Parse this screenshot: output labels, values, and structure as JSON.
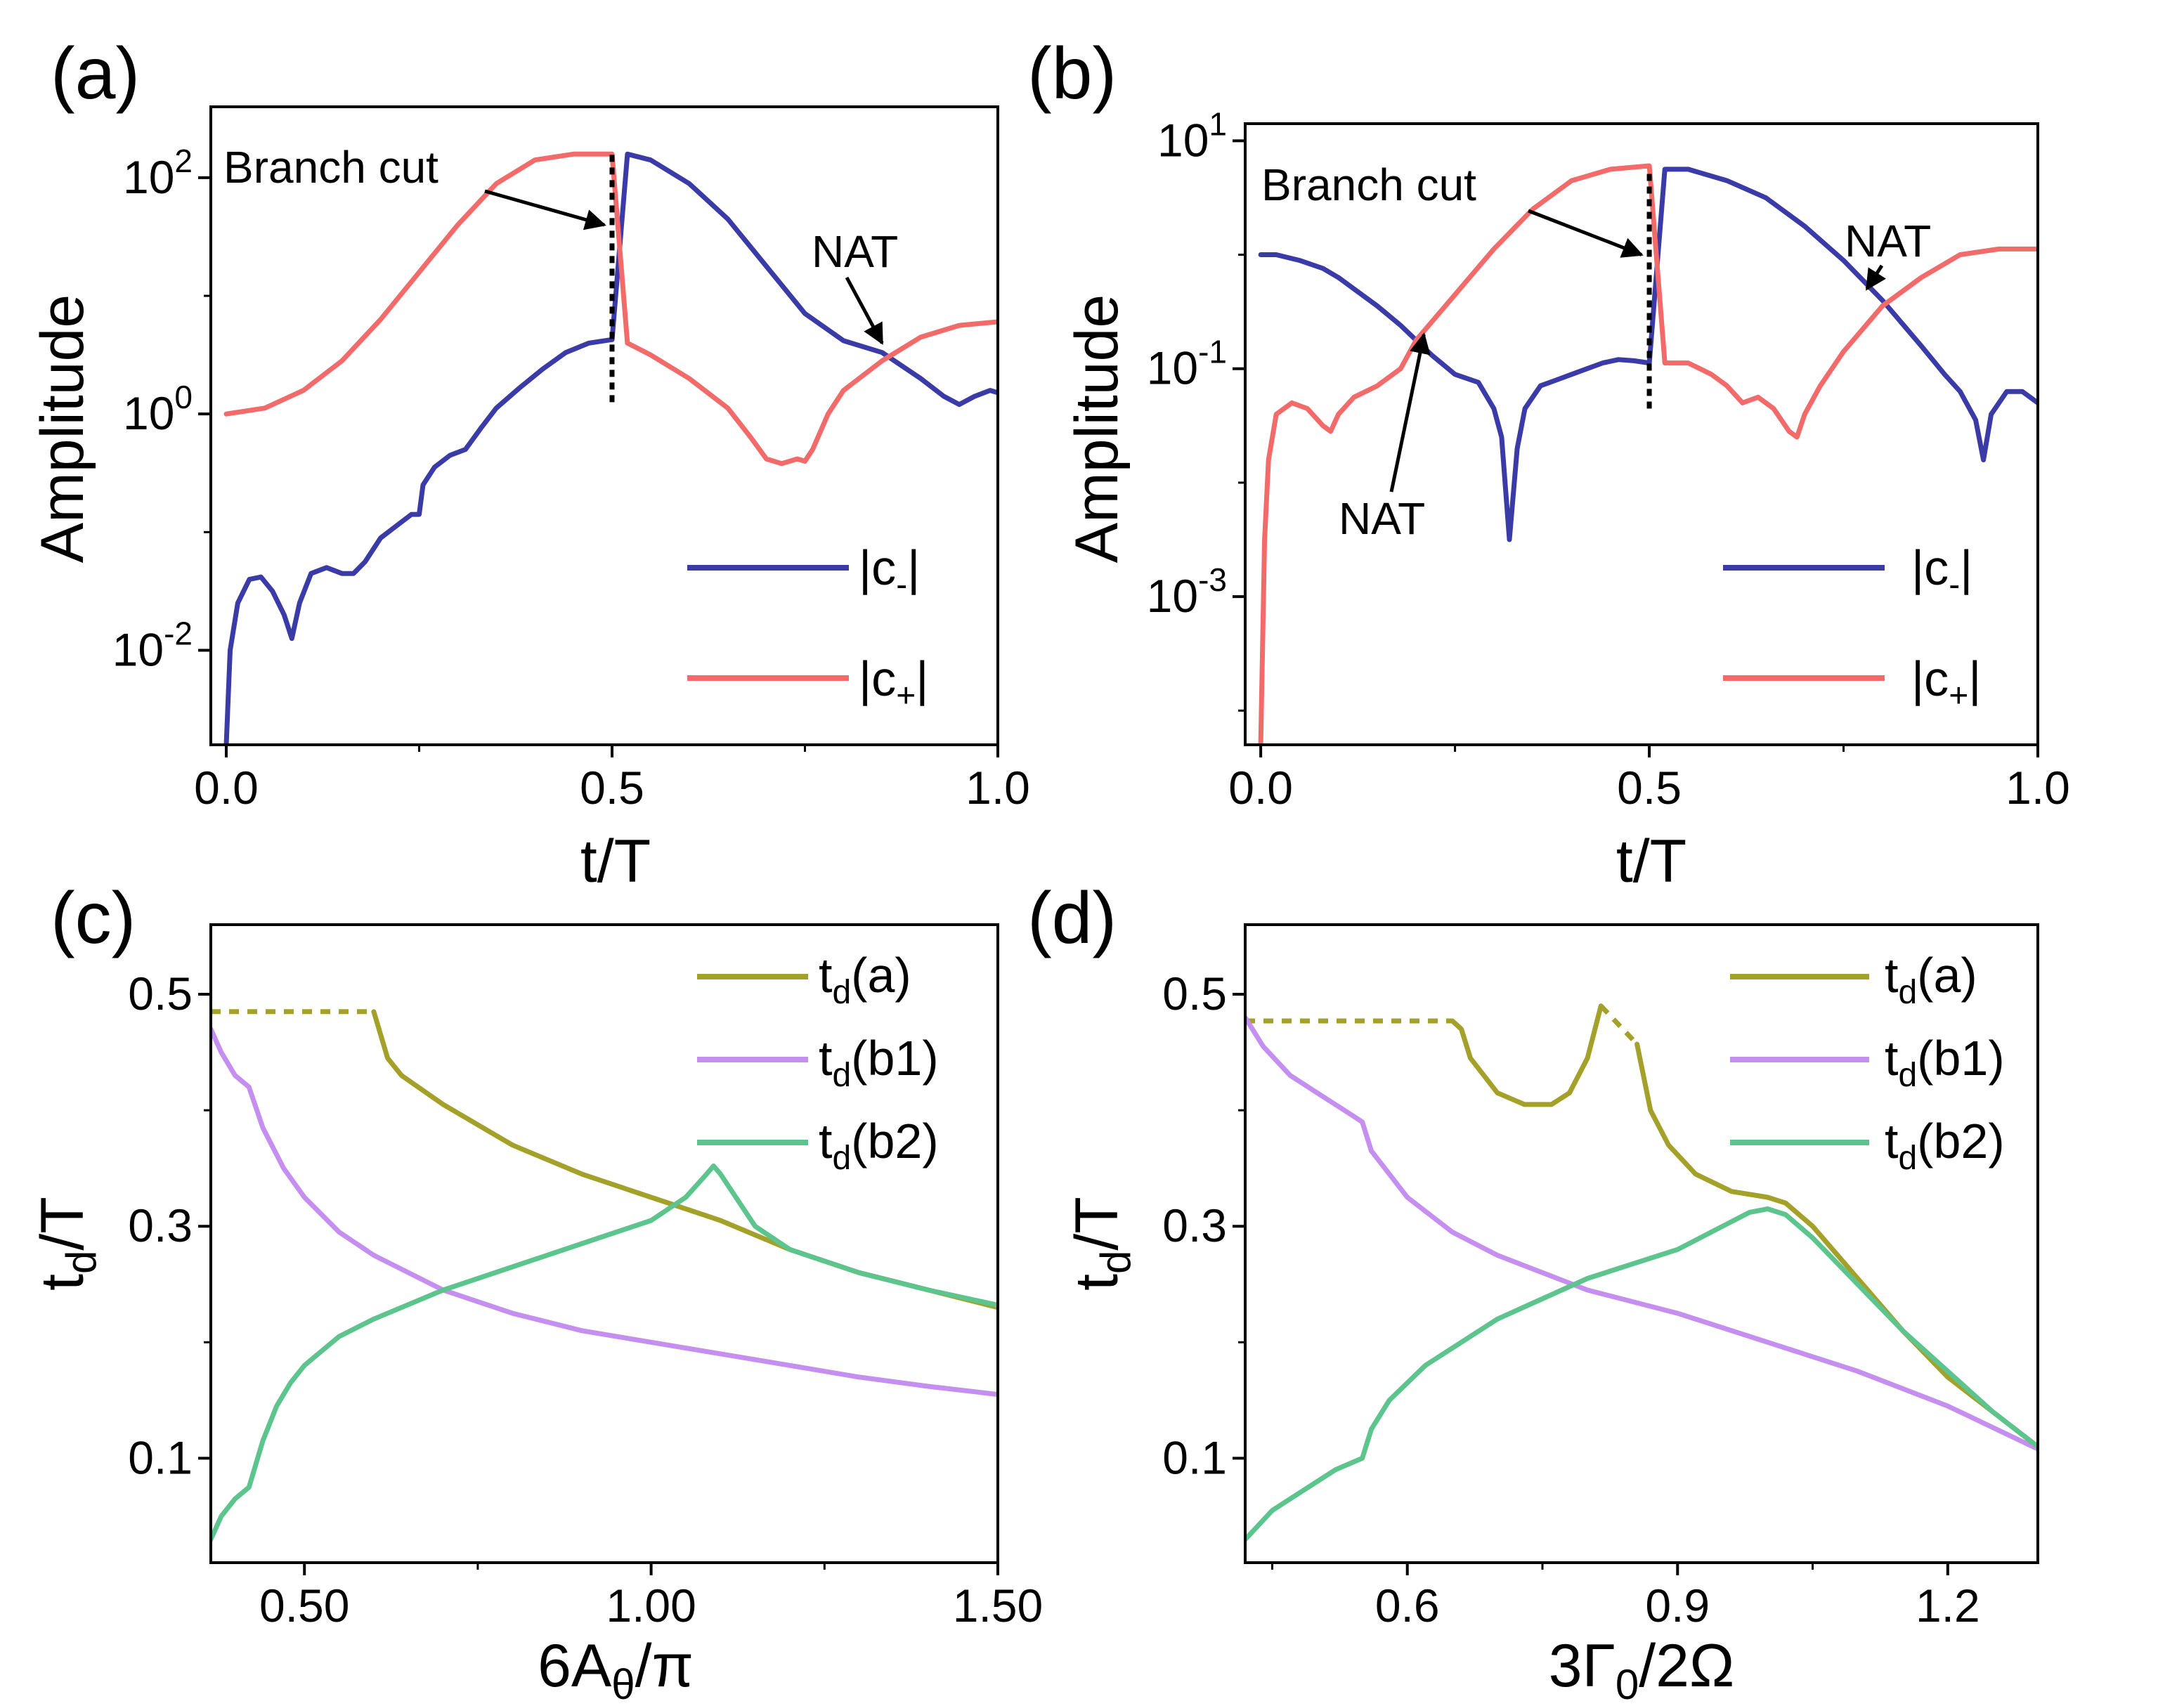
{
  "colors": {
    "c_minus": "#3b3ba8",
    "c_plus": "#f26b6b",
    "td_a": "#a3a12a",
    "td_b1": "#c58ff0",
    "td_b2": "#5cc48c",
    "axis": "#000000"
  },
  "chart_data": [
    {
      "id": "a",
      "panel_label": "(a)",
      "type": "line",
      "yscale": "log",
      "xlabel": "t/T",
      "ylabel": "Amplitude",
      "xlim": [
        -0.02,
        1.0
      ],
      "ylim_log10": [
        -2.8,
        2.6
      ],
      "xticks": [
        {
          "v": 0.0,
          "label": "0.0"
        },
        {
          "v": 0.5,
          "label": "0.5"
        },
        {
          "v": 1.0,
          "label": "1.0"
        }
      ],
      "yticks": [
        {
          "e": 2,
          "label": "2"
        },
        {
          "e": 0,
          "label": "0"
        },
        {
          "e": -2,
          "label": "-2"
        }
      ],
      "series": [
        {
          "name": "|c-|",
          "legend_main": "|c",
          "legend_sub": "-",
          "legend_tail": "|",
          "color_key": "c_minus",
          "x": [
            0.0,
            0.005,
            0.015,
            0.03,
            0.045,
            0.06,
            0.075,
            0.085,
            0.095,
            0.11,
            0.13,
            0.15,
            0.165,
            0.18,
            0.2,
            0.22,
            0.24,
            0.25,
            0.255,
            0.27,
            0.29,
            0.31,
            0.33,
            0.35,
            0.38,
            0.41,
            0.44,
            0.47,
            0.5,
            0.52,
            0.55,
            0.6,
            0.65,
            0.7,
            0.75,
            0.8,
            0.85,
            0.9,
            0.93,
            0.95,
            0.97,
            0.99,
            1.0
          ],
          "log10y": [
            -2.8,
            -2.0,
            -1.6,
            -1.4,
            -1.38,
            -1.5,
            -1.7,
            -1.9,
            -1.6,
            -1.35,
            -1.3,
            -1.35,
            -1.35,
            -1.25,
            -1.05,
            -0.95,
            -0.85,
            -0.85,
            -0.6,
            -0.45,
            -0.35,
            -0.3,
            -0.12,
            0.05,
            0.22,
            0.38,
            0.52,
            0.6,
            0.63,
            2.2,
            2.15,
            1.95,
            1.65,
            1.25,
            0.85,
            0.62,
            0.52,
            0.3,
            0.15,
            0.08,
            0.15,
            0.2,
            0.18
          ]
        },
        {
          "name": "|c+|",
          "legend_main": "|c",
          "legend_sub": "+",
          "legend_tail": "|",
          "color_key": "c_plus",
          "x": [
            0.0,
            0.05,
            0.1,
            0.15,
            0.2,
            0.25,
            0.3,
            0.35,
            0.4,
            0.45,
            0.5,
            0.52,
            0.55,
            0.6,
            0.65,
            0.68,
            0.7,
            0.72,
            0.74,
            0.75,
            0.76,
            0.78,
            0.8,
            0.85,
            0.9,
            0.95,
            1.0
          ],
          "log10y": [
            0.0,
            0.05,
            0.2,
            0.45,
            0.8,
            1.2,
            1.6,
            1.95,
            2.15,
            2.2,
            2.2,
            0.6,
            0.5,
            0.3,
            0.05,
            -0.2,
            -0.38,
            -0.42,
            -0.38,
            -0.4,
            -0.3,
            0.0,
            0.2,
            0.45,
            0.65,
            0.75,
            0.78
          ]
        }
      ],
      "branch_cut_x": 0.5,
      "branch_cut_log10y": [
        0.1,
        2.2
      ],
      "annotations": [
        {
          "text": "Branch cut",
          "role": "branch",
          "arrow_to": [
            0.49,
            1.6
          ]
        },
        {
          "text": "NAT",
          "role": "nat1",
          "arrow_to": [
            0.85,
            0.6
          ]
        }
      ],
      "legend_position": "bottom-right"
    },
    {
      "id": "b",
      "panel_label": "(b)",
      "type": "line",
      "yscale": "log",
      "xlabel": "t/T",
      "ylabel": "Amplitude",
      "xlim": [
        -0.02,
        1.0
      ],
      "ylim_log10": [
        -4.3,
        1.15
      ],
      "xticks": [
        {
          "v": 0.0,
          "label": "0.0"
        },
        {
          "v": 0.5,
          "label": "0.5"
        },
        {
          "v": 1.0,
          "label": "1.0"
        }
      ],
      "yticks": [
        {
          "e": 1,
          "label": "1"
        },
        {
          "e": -1,
          "label": "-1"
        },
        {
          "e": -3,
          "label": "-3"
        }
      ],
      "series": [
        {
          "name": "|c-|",
          "legend_main": "|c",
          "legend_sub": "-",
          "legend_tail": "|",
          "color_key": "c_minus",
          "x": [
            0.0,
            0.02,
            0.05,
            0.08,
            0.1,
            0.12,
            0.15,
            0.18,
            0.2,
            0.22,
            0.25,
            0.28,
            0.3,
            0.31,
            0.32,
            0.33,
            0.34,
            0.36,
            0.38,
            0.4,
            0.42,
            0.44,
            0.46,
            0.48,
            0.5,
            0.52,
            0.55,
            0.6,
            0.65,
            0.7,
            0.75,
            0.8,
            0.85,
            0.88,
            0.9,
            0.92,
            0.93,
            0.94,
            0.96,
            0.98,
            1.0
          ],
          "log10y": [
            0.0,
            0.0,
            -0.05,
            -0.12,
            -0.2,
            -0.3,
            -0.45,
            -0.62,
            -0.75,
            -0.88,
            -1.05,
            -1.12,
            -1.35,
            -1.6,
            -2.5,
            -1.7,
            -1.35,
            -1.15,
            -1.1,
            -1.05,
            -1.0,
            -0.95,
            -0.92,
            -0.93,
            -0.95,
            0.75,
            0.75,
            0.65,
            0.5,
            0.25,
            -0.05,
            -0.4,
            -0.8,
            -1.05,
            -1.2,
            -1.45,
            -1.8,
            -1.4,
            -1.2,
            -1.2,
            -1.3
          ]
        },
        {
          "name": "|c+|",
          "legend_main": "|c",
          "legend_sub": "+",
          "legend_tail": "|",
          "color_key": "c_plus",
          "x": [
            0.0,
            0.005,
            0.01,
            0.02,
            0.04,
            0.06,
            0.08,
            0.09,
            0.1,
            0.12,
            0.15,
            0.18,
            0.2,
            0.25,
            0.3,
            0.35,
            0.4,
            0.45,
            0.5,
            0.52,
            0.55,
            0.58,
            0.6,
            0.62,
            0.64,
            0.66,
            0.68,
            0.69,
            0.7,
            0.72,
            0.75,
            0.8,
            0.85,
            0.9,
            0.95,
            1.0
          ],
          "log10y": [
            -4.3,
            -2.5,
            -1.8,
            -1.4,
            -1.3,
            -1.35,
            -1.5,
            -1.55,
            -1.4,
            -1.25,
            -1.15,
            -1.0,
            -0.75,
            -0.35,
            0.05,
            0.4,
            0.65,
            0.75,
            0.78,
            -0.95,
            -0.95,
            -1.05,
            -1.15,
            -1.3,
            -1.25,
            -1.35,
            -1.55,
            -1.6,
            -1.4,
            -1.15,
            -0.85,
            -0.45,
            -0.2,
            0.0,
            0.05,
            0.05
          ]
        }
      ],
      "branch_cut_x": 0.5,
      "branch_cut_log10y": [
        -1.35,
        0.75
      ],
      "annotations": [
        {
          "text": "Branch cut",
          "role": "branch",
          "arrow_to": [
            0.49,
            0.0
          ]
        },
        {
          "text": "NAT",
          "role": "nat1",
          "arrow_to": [
            0.78,
            -0.3
          ]
        },
        {
          "text": "NAT",
          "role": "nat2",
          "arrow_to": [
            0.21,
            -0.7
          ]
        }
      ],
      "legend_position": "bottom-right"
    },
    {
      "id": "c",
      "panel_label": "(c)",
      "type": "line",
      "yscale": "linear",
      "xlabel": "6Aθ/π",
      "xlabel_main": "6A",
      "xlabel_sub": "θ",
      "xlabel_tail": "/π",
      "ylabel": "td/T",
      "ylabel_main": "t",
      "ylabel_sub": "d",
      "ylabel_tail": "/T",
      "xlim": [
        0.365,
        1.5
      ],
      "ylim": [
        0.01,
        0.56
      ],
      "xticks": [
        {
          "v": 0.5,
          "label": "0.50"
        },
        {
          "v": 1.0,
          "label": "1.00"
        },
        {
          "v": 1.5,
          "label": "1.50"
        }
      ],
      "yticks": [
        {
          "v": 0.5,
          "label": "0.5"
        },
        {
          "v": 0.3,
          "label": "0.3"
        },
        {
          "v": 0.1,
          "label": "0.1"
        }
      ],
      "series": [
        {
          "name": "td(a)",
          "legend_main": "t",
          "legend_sub": "d",
          "legend_tail": "(a)",
          "color_key": "td_a",
          "dashed_x": [
            0.365,
            0.6
          ],
          "dashed_y": [
            0.485,
            0.485
          ],
          "x": [
            0.6,
            0.62,
            0.64,
            0.7,
            0.8,
            0.9,
            1.0,
            1.1,
            1.2,
            1.3,
            1.4,
            1.5
          ],
          "y": [
            0.485,
            0.445,
            0.43,
            0.405,
            0.37,
            0.345,
            0.325,
            0.305,
            0.28,
            0.26,
            0.245,
            0.23
          ]
        },
        {
          "name": "td(b1)",
          "legend_main": "t",
          "legend_sub": "d",
          "legend_tail": "(b1)",
          "color_key": "td_b1",
          "x": [
            0.365,
            0.38,
            0.4,
            0.42,
            0.44,
            0.47,
            0.5,
            0.55,
            0.6,
            0.7,
            0.8,
            0.9,
            1.0,
            1.1,
            1.2,
            1.3,
            1.4,
            1.5
          ],
          "y": [
            0.47,
            0.45,
            0.43,
            0.42,
            0.385,
            0.35,
            0.325,
            0.295,
            0.275,
            0.245,
            0.225,
            0.21,
            0.2,
            0.19,
            0.18,
            0.17,
            0.162,
            0.155
          ]
        },
        {
          "name": "td(b2)",
          "legend_main": "t",
          "legend_sub": "d",
          "legend_tail": "(b2)",
          "color_key": "td_b2",
          "x": [
            0.365,
            0.38,
            0.4,
            0.42,
            0.44,
            0.46,
            0.48,
            0.5,
            0.55,
            0.6,
            0.7,
            0.8,
            0.9,
            1.0,
            1.05,
            1.08,
            1.09,
            1.1,
            1.15,
            1.2,
            1.3,
            1.4,
            1.5
          ],
          "y": [
            0.03,
            0.05,
            0.065,
            0.075,
            0.115,
            0.145,
            0.165,
            0.18,
            0.205,
            0.22,
            0.245,
            0.265,
            0.285,
            0.305,
            0.325,
            0.345,
            0.352,
            0.345,
            0.3,
            0.28,
            0.26,
            0.245,
            0.232
          ]
        }
      ],
      "legend_position": "top-right"
    },
    {
      "id": "d",
      "panel_label": "(d)",
      "type": "line",
      "yscale": "linear",
      "xlabel": "3Γ0/2Ω",
      "xlabel_main": "3Γ",
      "xlabel_sub": "0",
      "xlabel_tail": "/2Ω",
      "ylabel": "td/T",
      "ylabel_main": "t",
      "ylabel_sub": "d",
      "ylabel_tail": "/T",
      "xlim": [
        0.42,
        1.3
      ],
      "ylim": [
        0.01,
        0.56
      ],
      "xticks": [
        {
          "v": 0.6,
          "label": "0.6"
        },
        {
          "v": 0.9,
          "label": "0.9"
        },
        {
          "v": 1.2,
          "label": "1.2"
        }
      ],
      "yticks": [
        {
          "v": 0.5,
          "label": "0.5"
        },
        {
          "v": 0.3,
          "label": "0.3"
        },
        {
          "v": 0.1,
          "label": "0.1"
        }
      ],
      "series": [
        {
          "name": "td(a)",
          "legend_main": "t",
          "legend_sub": "d",
          "legend_tail": "(a)",
          "color_key": "td_a",
          "dashed_x": [
            0.42,
            0.65
          ],
          "dashed_y": [
            0.477,
            0.477
          ],
          "dashed2_x": [
            0.815,
            0.855
          ],
          "dashed2_y": [
            0.49,
            0.457
          ],
          "x": [
            0.65,
            0.66,
            0.67,
            0.7,
            0.73,
            0.76,
            0.78,
            0.8,
            0.815
          ],
          "y": [
            0.477,
            0.47,
            0.445,
            0.415,
            0.405,
            0.405,
            0.415,
            0.445,
            0.49
          ],
          "x2": [
            0.855,
            0.87,
            0.89,
            0.92,
            0.96,
            1.0,
            1.02,
            1.05,
            1.1,
            1.15,
            1.2,
            1.25,
            1.3
          ],
          "y2": [
            0.457,
            0.4,
            0.37,
            0.345,
            0.33,
            0.325,
            0.32,
            0.3,
            0.255,
            0.21,
            0.17,
            0.14,
            0.11
          ]
        },
        {
          "name": "td(b1)",
          "legend_main": "t",
          "legend_sub": "d",
          "legend_tail": "(b1)",
          "color_key": "td_b1",
          "x": [
            0.42,
            0.44,
            0.47,
            0.5,
            0.53,
            0.55,
            0.56,
            0.58,
            0.6,
            0.65,
            0.7,
            0.8,
            0.9,
            1.0,
            1.1,
            1.2,
            1.3
          ],
          "y": [
            0.48,
            0.455,
            0.43,
            0.415,
            0.4,
            0.39,
            0.365,
            0.345,
            0.325,
            0.295,
            0.275,
            0.245,
            0.225,
            0.2,
            0.175,
            0.145,
            0.108
          ]
        },
        {
          "name": "td(b2)",
          "legend_main": "t",
          "legend_sub": "d",
          "legend_tail": "(b2)",
          "color_key": "td_b2",
          "x": [
            0.42,
            0.45,
            0.48,
            0.52,
            0.55,
            0.56,
            0.58,
            0.62,
            0.7,
            0.8,
            0.9,
            0.95,
            0.98,
            1.0,
            1.02,
            1.05,
            1.1,
            1.15,
            1.2,
            1.25,
            1.3
          ],
          "y": [
            0.03,
            0.055,
            0.07,
            0.09,
            0.1,
            0.125,
            0.15,
            0.18,
            0.22,
            0.255,
            0.28,
            0.3,
            0.312,
            0.315,
            0.31,
            0.29,
            0.25,
            0.21,
            0.175,
            0.14,
            0.11
          ]
        }
      ],
      "legend_position": "top-right"
    }
  ]
}
